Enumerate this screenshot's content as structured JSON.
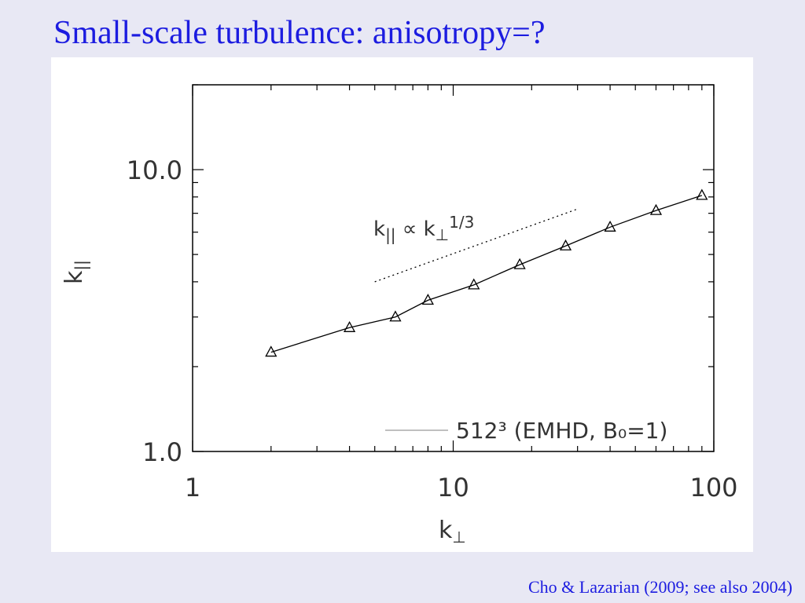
{
  "slide_title": "Small-scale turbulence: anisotropy=?",
  "citation": "Cho & Lazarian (2009; see also 2004)",
  "chart_data": {
    "type": "line",
    "x_label": {
      "base": "k",
      "sub": "⊥"
    },
    "y_label": {
      "base": "k",
      "sub": "||"
    },
    "xlog": true,
    "ylog": true,
    "xlim": [
      1,
      100
    ],
    "ylim": [
      1,
      20
    ],
    "xticks": [
      1,
      10,
      100
    ],
    "yticks": [
      {
        "value": 1,
        "label": "1.0"
      },
      {
        "value": 10,
        "label": "10.0"
      }
    ],
    "xminorticks": [
      2,
      3,
      4,
      5,
      6,
      7,
      8,
      9,
      20,
      30,
      40,
      50,
      60,
      70,
      80,
      90
    ],
    "yminorticks": [
      2,
      3,
      4,
      5,
      6,
      7,
      8,
      9,
      20
    ],
    "series": [
      {
        "name": "512³ (EMHD, B₀=1)",
        "color": "#000000",
        "legend_color": "#aaaaaa",
        "marker": "triangle",
        "x": [
          2,
          4,
          6,
          8,
          12,
          18,
          27,
          40,
          60,
          90
        ],
        "values": [
          2.25,
          2.75,
          3.0,
          3.44,
          3.9,
          4.6,
          5.36,
          6.25,
          7.16,
          8.1
        ]
      },
      {
        "color": "#000000",
        "style": "dotted",
        "x": [
          5,
          30
        ],
        "values": [
          4.0,
          7.25
        ]
      }
    ],
    "annotation": {
      "base": "k",
      "sub": "||",
      "op": " ∝ k",
      "sub2": "⊥",
      "sup": "1/3"
    },
    "legend": "bottom-right"
  }
}
